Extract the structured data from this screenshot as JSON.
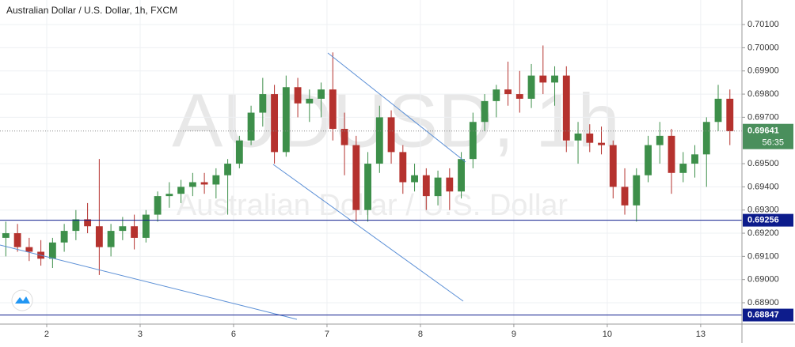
{
  "chart_data": {
    "type": "candlestick",
    "title": "Australian Dollar / U.S. Dollar, 1h, FXCM",
    "watermark": "AUDUSD, 1h",
    "watermark_subtitle": "Australian Dollar / U.S. Dollar",
    "up_color": "#3d8f4a",
    "down_color": "#b5322e",
    "x": [
      1.5,
      4.5,
      7.5,
      10.5,
      13.5,
      16.5,
      19.5,
      22.5,
      25.5,
      28.5,
      31.5,
      34.5,
      37.5,
      40.5,
      43.5,
      46.5,
      49.5,
      52.5,
      55.5,
      58.5,
      61.5,
      64.5,
      67.5,
      70.5,
      73.5,
      76.5,
      79.5,
      82.5,
      85.5,
      88.5,
      91.5,
      94.5,
      97.5,
      100.5,
      103.5,
      106.5,
      109.5,
      112.5,
      115.5,
      118.5,
      121.5,
      124.5,
      127.5,
      130.5,
      133.5,
      136.5,
      139.5,
      142.5,
      145.5,
      148.5,
      151.5,
      154.5,
      157.5,
      160.5,
      163.5,
      166.5,
      169.5,
      172.5,
      175.5,
      178.5,
      181.5,
      184.5,
      187.5
    ],
    "open": [
      0.6918,
      0.692,
      0.6914,
      0.6912,
      0.6909,
      0.6916,
      0.6921,
      0.6926,
      0.6923,
      0.6914,
      0.6921,
      0.6923,
      0.6918,
      0.6928,
      0.6936,
      0.6937,
      0.694,
      0.6942,
      0.6941,
      0.6945,
      0.695,
      0.696,
      0.6972,
      0.698,
      0.6955,
      0.6983,
      0.6976,
      0.6978,
      0.6982,
      0.6965,
      0.6958,
      0.693,
      0.695,
      0.697,
      0.6955,
      0.6942,
      0.6945,
      0.6936,
      0.6944,
      0.6938,
      0.6952,
      0.6968,
      0.6977,
      0.6982,
      0.698,
      0.6978,
      0.6988,
      0.6985,
      0.6988,
      0.696,
      0.6963,
      0.6959,
      0.6958,
      0.694,
      0.6932,
      0.6945,
      0.6958,
      0.6962,
      0.6946,
      0.695,
      0.6954,
      0.6968,
      0.6978
    ],
    "high": [
      0.6925,
      0.6924,
      0.6918,
      0.6917,
      0.6918,
      0.6924,
      0.693,
      0.6933,
      0.6952,
      0.6924,
      0.6927,
      0.6928,
      0.693,
      0.6938,
      0.6942,
      0.6943,
      0.6946,
      0.6946,
      0.6948,
      0.6952,
      0.6962,
      0.6975,
      0.6987,
      0.6984,
      0.6988,
      0.6987,
      0.6982,
      0.6985,
      0.6998,
      0.6972,
      0.6962,
      0.6955,
      0.6975,
      0.6973,
      0.6958,
      0.695,
      0.6948,
      0.6947,
      0.6948,
      0.6955,
      0.6972,
      0.698,
      0.6984,
      0.6994,
      0.699,
      0.6993,
      0.7001,
      0.6992,
      0.6992,
      0.6968,
      0.6967,
      0.6966,
      0.696,
      0.6948,
      0.6948,
      0.6962,
      0.6968,
      0.6965,
      0.6955,
      0.6958,
      0.697,
      0.6984,
      0.6982
    ],
    "low": [
      0.691,
      0.6912,
      0.6908,
      0.6906,
      0.6905,
      0.6912,
      0.6917,
      0.692,
      0.6902,
      0.691,
      0.6917,
      0.6913,
      0.6916,
      0.6925,
      0.6931,
      0.6933,
      0.6936,
      0.6937,
      0.6935,
      0.6928,
      0.6948,
      0.6958,
      0.6966,
      0.695,
      0.6953,
      0.697,
      0.6968,
      0.697,
      0.696,
      0.6945,
      0.6925,
      0.6925,
      0.6946,
      0.695,
      0.6937,
      0.6938,
      0.693,
      0.6932,
      0.693,
      0.6935,
      0.6948,
      0.6964,
      0.697,
      0.6975,
      0.6972,
      0.6974,
      0.698,
      0.6975,
      0.6955,
      0.695,
      0.6955,
      0.6954,
      0.6935,
      0.6928,
      0.6925,
      0.6942,
      0.695,
      0.6937,
      0.6942,
      0.6944,
      0.694,
      0.6964,
      0.6958
    ],
    "close": [
      0.692,
      0.6914,
      0.6912,
      0.6909,
      0.6916,
      0.6921,
      0.6926,
      0.6923,
      0.6914,
      0.6921,
      0.6923,
      0.6918,
      0.6928,
      0.6936,
      0.6937,
      0.694,
      0.6942,
      0.6941,
      0.6945,
      0.695,
      0.696,
      0.6972,
      0.698,
      0.6955,
      0.6983,
      0.6976,
      0.6978,
      0.6982,
      0.6965,
      0.6958,
      0.693,
      0.695,
      0.697,
      0.6955,
      0.6942,
      0.6945,
      0.6936,
      0.6944,
      0.6938,
      0.6952,
      0.6968,
      0.6977,
      0.6982,
      0.698,
      0.6978,
      0.6988,
      0.6985,
      0.6988,
      0.696,
      0.6963,
      0.6959,
      0.6958,
      0.694,
      0.6932,
      0.6945,
      0.6958,
      0.6962,
      0.6946,
      0.695,
      0.6954,
      0.6968,
      0.6978,
      0.6964
    ],
    "xlim": [
      0,
      190.6
    ],
    "xticks": [
      {
        "value": 12,
        "label": "2"
      },
      {
        "value": 36,
        "label": "3"
      },
      {
        "value": 60,
        "label": "6"
      },
      {
        "value": 84,
        "label": "7"
      },
      {
        "value": 108,
        "label": "8"
      },
      {
        "value": 132,
        "label": "9"
      },
      {
        "value": 156,
        "label": "10"
      },
      {
        "value": 180,
        "label": "13"
      }
    ],
    "ylim": [
      0.68808,
      0.70206
    ],
    "yticks": [
      {
        "value": 0.701,
        "label": "0.70100"
      },
      {
        "value": 0.7,
        "label": "0.70000"
      },
      {
        "value": 0.699,
        "label": "0.69900"
      },
      {
        "value": 0.698,
        "label": "0.69800"
      },
      {
        "value": 0.697,
        "label": "0.69700"
      },
      {
        "value": 0.695,
        "label": "0.69500"
      },
      {
        "value": 0.694,
        "label": "0.69400"
      },
      {
        "value": 0.693,
        "label": "0.69300"
      },
      {
        "value": 0.692,
        "label": "0.69200"
      },
      {
        "value": 0.691,
        "label": "0.69100"
      },
      {
        "value": 0.69,
        "label": "0.69000"
      },
      {
        "value": 0.689,
        "label": "0.68900"
      }
    ],
    "grid": true,
    "last_price": {
      "value": 0.69641,
      "label": "0.69641",
      "countdown": "56:35",
      "color": "#4a8f5c"
    },
    "levels": [
      {
        "value": 0.69256,
        "label": "0.69256",
        "color": "#0d1c8c"
      },
      {
        "value": 0.68847,
        "label": "0.68847",
        "color": "#0d1c8c"
      }
    ]
  }
}
